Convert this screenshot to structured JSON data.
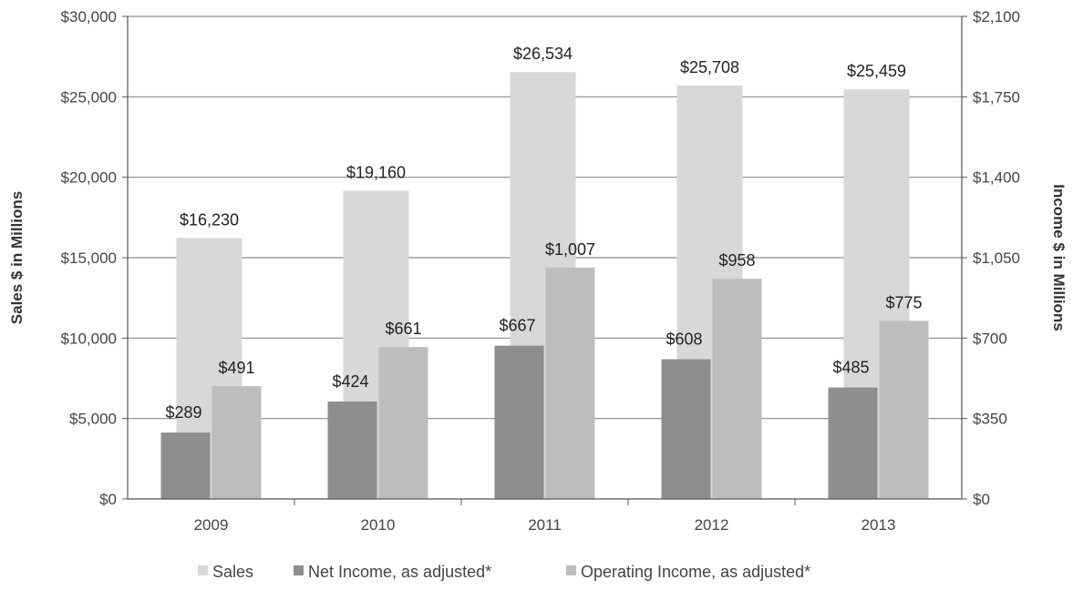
{
  "chart_data": {
    "type": "bar",
    "categories": [
      "2009",
      "2010",
      "2011",
      "2012",
      "2013"
    ],
    "series": [
      {
        "name": "Sales",
        "axis": "left",
        "values": [
          16230,
          19160,
          26534,
          25708,
          25459
        ],
        "labels": [
          "$16,230",
          "$19,160",
          "$26,534",
          "$25,708",
          "$25,459"
        ],
        "color": "#d8d8d8"
      },
      {
        "name": "Net Income, as adjusted*",
        "axis": "right",
        "values": [
          289,
          424,
          667,
          608,
          485
        ],
        "labels": [
          "$289",
          "$424",
          "$667",
          "$608",
          "$485"
        ],
        "color": "#8e8e90"
      },
      {
        "name": "Operating Income, as adjusted*",
        "axis": "right",
        "values": [
          491,
          661,
          1007,
          958,
          775
        ],
        "labels": [
          "$491",
          "$661",
          "$1,007",
          "$958",
          "$775"
        ],
        "color": "#bdbdbd"
      }
    ],
    "ylabel": "Sales $ in Millions",
    "y2label": "Income $ in Millions",
    "ylim": [
      0,
      30000
    ],
    "y2lim": [
      0,
      2100
    ],
    "yticks": [
      "$0",
      "$5,000",
      "$10,000",
      "$15,000",
      "$20,000",
      "$25,000",
      "$30,000"
    ],
    "y2ticks": [
      "$0",
      "$350",
      "$700",
      "$1,050",
      "$1,400",
      "$1,750",
      "$2,100"
    ],
    "grid": true,
    "legend_position": "bottom"
  }
}
